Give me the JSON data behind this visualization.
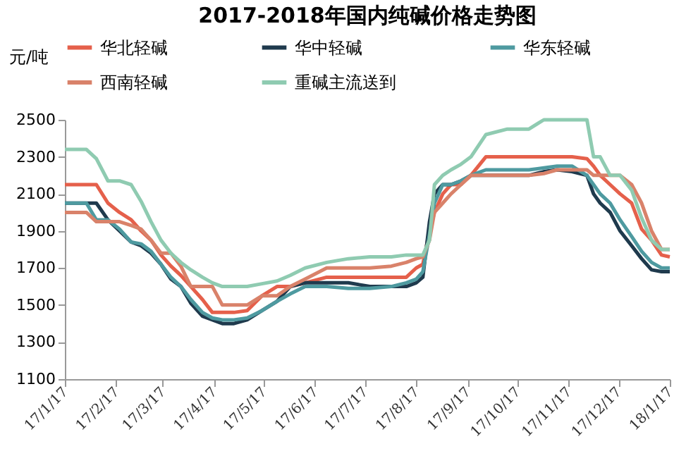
{
  "chart_data": {
    "type": "line",
    "title": "2017-2018年国内纯碱价格走势图",
    "ylabel": "元/吨",
    "x": [
      "2017-01-17",
      "2017-01-30",
      "2017-02-05",
      "2017-02-12",
      "2017-02-19",
      "2017-02-26",
      "2017-03-04",
      "2017-03-10",
      "2017-03-16",
      "2017-03-22",
      "2017-03-28",
      "2017-04-03",
      "2017-04-10",
      "2017-04-16",
      "2017-04-22",
      "2017-04-29",
      "2017-05-07",
      "2017-05-16",
      "2017-05-25",
      "2017-06-02",
      "2017-06-11",
      "2017-06-24",
      "2017-07-07",
      "2017-07-20",
      "2017-08-02",
      "2017-08-11",
      "2017-08-17",
      "2017-08-21",
      "2017-08-25",
      "2017-08-28",
      "2017-09-02",
      "2017-09-07",
      "2017-09-13",
      "2017-09-19",
      "2017-09-28",
      "2017-10-11",
      "2017-10-24",
      "2017-11-02",
      "2017-11-10",
      "2017-11-19",
      "2017-11-28",
      "2017-12-02",
      "2017-12-06",
      "2017-12-12",
      "2017-12-18",
      "2017-12-25",
      "2017-12-31",
      "2018-01-06",
      "2018-01-12",
      "2018-01-17"
    ],
    "series": [
      {
        "name": "华北轻碱",
        "color": "#e5604b",
        "values": [
          2150,
          2150,
          2150,
          2050,
          2000,
          1960,
          1900,
          1850,
          1770,
          1710,
          1660,
          1600,
          1530,
          1460,
          1460,
          1460,
          1470,
          1550,
          1600,
          1600,
          1620,
          1650,
          1650,
          1650,
          1650,
          1650,
          1700,
          1720,
          1900,
          2000,
          2100,
          2150,
          2150,
          2200,
          2300,
          2300,
          2300,
          2300,
          2300,
          2300,
          2290,
          2250,
          2200,
          2150,
          2100,
          2050,
          1910,
          1850,
          1770,
          1760
        ]
      },
      {
        "name": "华中轻碱",
        "color": "#1f3a4d",
        "values": [
          2050,
          2050,
          2050,
          1960,
          1900,
          1840,
          1820,
          1780,
          1720,
          1640,
          1600,
          1510,
          1440,
          1420,
          1400,
          1400,
          1420,
          1470,
          1520,
          1600,
          1620,
          1620,
          1620,
          1600,
          1600,
          1600,
          1620,
          1650,
          1950,
          2100,
          2150,
          2150,
          2170,
          2200,
          2200,
          2200,
          2200,
          2220,
          2230,
          2220,
          2200,
          2100,
          2050,
          2000,
          1900,
          1820,
          1750,
          1690,
          1680,
          1680
        ]
      },
      {
        "name": "华东轻碱",
        "color": "#4e9aa0",
        "values": [
          2050,
          2050,
          1960,
          1960,
          1910,
          1840,
          1830,
          1790,
          1720,
          1650,
          1600,
          1530,
          1460,
          1430,
          1420,
          1420,
          1430,
          1470,
          1520,
          1560,
          1600,
          1600,
          1590,
          1590,
          1600,
          1620,
          1640,
          1680,
          1880,
          2050,
          2150,
          2150,
          2170,
          2200,
          2230,
          2230,
          2230,
          2240,
          2250,
          2250,
          2200,
          2150,
          2100,
          2050,
          1960,
          1870,
          1790,
          1730,
          1700,
          1700
        ]
      },
      {
        "name": "西南轻碱",
        "color": "#d9826a",
        "values": [
          2000,
          2000,
          1950,
          1950,
          1950,
          1930,
          1910,
          1850,
          1780,
          1780,
          1710,
          1600,
          1600,
          1600,
          1500,
          1500,
          1500,
          1550,
          1550,
          1600,
          1640,
          1700,
          1700,
          1700,
          1710,
          1730,
          1750,
          1760,
          1850,
          2000,
          2050,
          2100,
          2150,
          2200,
          2200,
          2200,
          2200,
          2210,
          2230,
          2230,
          2230,
          2200,
          2200,
          2200,
          2200,
          2150,
          2050,
          1900,
          1800,
          1800
        ]
      },
      {
        "name": "重碱主流送到",
        "color": "#8fcbb1",
        "values": [
          2340,
          2340,
          2290,
          2170,
          2170,
          2150,
          2060,
          1950,
          1850,
          1780,
          1730,
          1690,
          1650,
          1620,
          1600,
          1600,
          1600,
          1615,
          1630,
          1660,
          1700,
          1730,
          1750,
          1760,
          1760,
          1770,
          1770,
          1770,
          1850,
          2150,
          2200,
          2230,
          2260,
          2300,
          2420,
          2450,
          2450,
          2500,
          2500,
          2500,
          2500,
          2300,
          2300,
          2200,
          2200,
          2120,
          1970,
          1850,
          1800,
          1800
        ]
      }
    ],
    "ylim": [
      1100,
      2500
    ],
    "yticks": [
      1100,
      1300,
      1500,
      1700,
      1900,
      2100,
      2300,
      2500
    ],
    "xlim": [
      "2017-01-17",
      "2018-01-17"
    ],
    "xticks": [
      {
        "value": "2017-01-17",
        "label": "17/1/17"
      },
      {
        "value": "2017-02-17",
        "label": "17/2/17"
      },
      {
        "value": "2017-03-17",
        "label": "17/3/17"
      },
      {
        "value": "2017-04-17",
        "label": "17/4/17"
      },
      {
        "value": "2017-05-17",
        "label": "17/5/17"
      },
      {
        "value": "2017-06-17",
        "label": "17/6/17"
      },
      {
        "value": "2017-07-17",
        "label": "17/7/17"
      },
      {
        "value": "2017-08-17",
        "label": "17/8/17"
      },
      {
        "value": "2017-09-17",
        "label": "17/9/17"
      },
      {
        "value": "2017-10-17",
        "label": "17/10/17"
      },
      {
        "value": "2017-11-17",
        "label": "17/11/17"
      },
      {
        "value": "2017-12-17",
        "label": "17/12/17"
      },
      {
        "value": "2018-01-17",
        "label": "18/1/17"
      }
    ],
    "legend": "top",
    "grid": false
  }
}
